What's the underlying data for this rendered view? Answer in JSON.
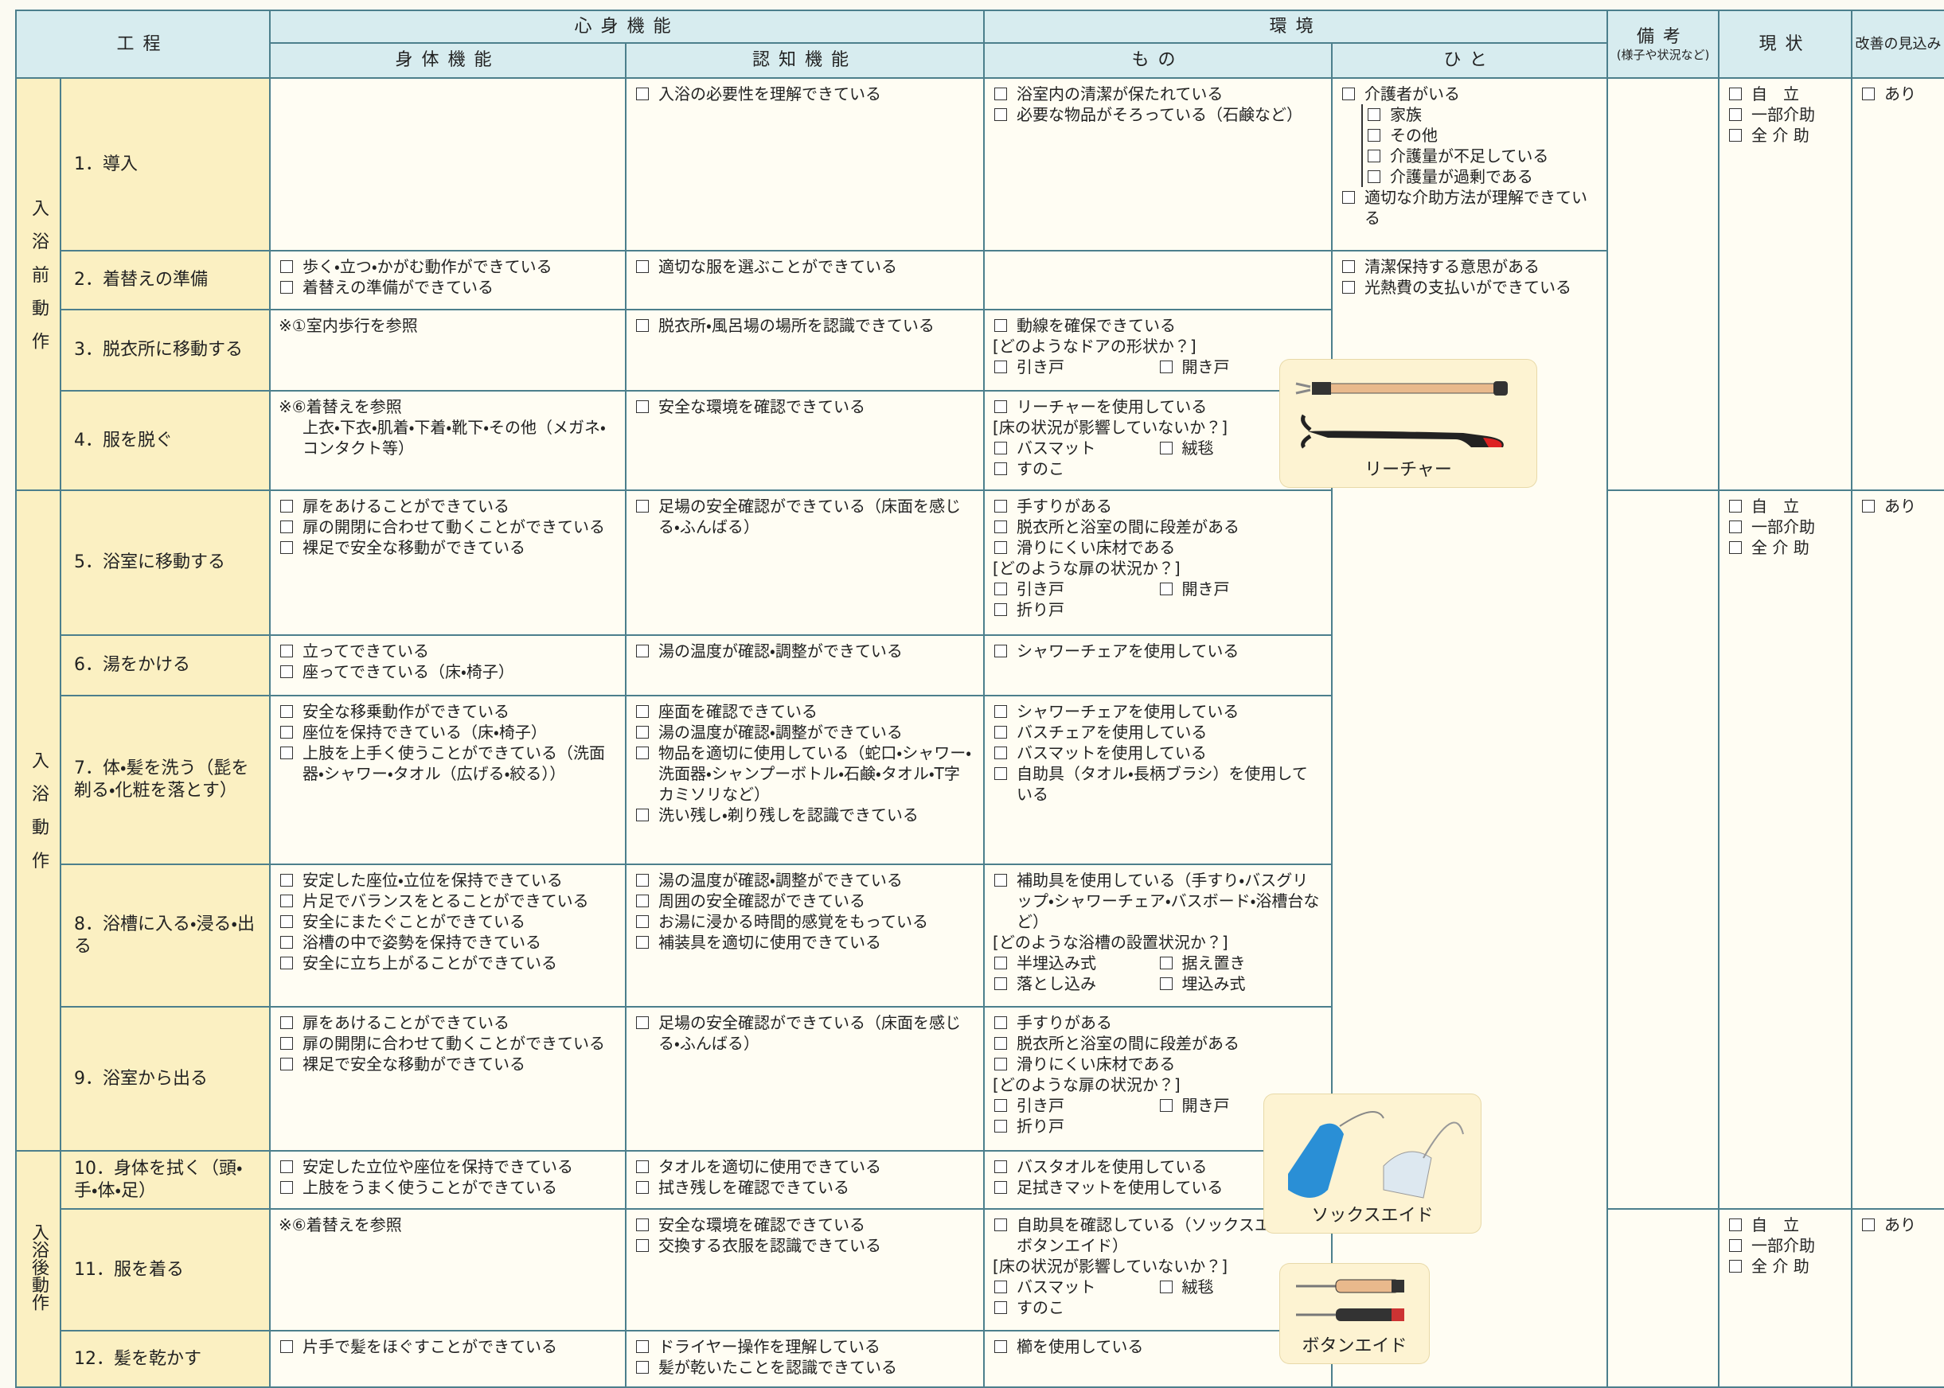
{
  "header": {
    "process": "工程",
    "mind_body": "心身機能",
    "physical": "身体機能",
    "cognitive": "認知機能",
    "environment": "環境",
    "things": "もの",
    "people": "ひと",
    "remarks": "備考",
    "remarks_note": "(様子や状況など)",
    "status": "現状",
    "improvement": "改善の見込み"
  },
  "phases": [
    {
      "label": "入浴前動作",
      "steps": [
        {
          "label": "1．導入",
          "physical": {},
          "cognitive": {
            "checks": [
              "入浴の必要性を理解できている"
            ]
          },
          "things": {
            "checks": [
              "浴室内の清潔が保たれている",
              "必要な物品がそろっている（石鹸など）"
            ]
          }
        },
        {
          "label": "2．着替えの準備",
          "physical": {
            "checks": [
              "歩く・立つ・かがむ動作ができている",
              "着替えの準備ができている"
            ]
          },
          "cognitive": {
            "checks": [
              "適切な服を選ぶことができている"
            ]
          },
          "things": {}
        },
        {
          "label": "3．脱衣所に移動する",
          "physical": {
            "note": "※①室内歩行を参照"
          },
          "cognitive": {
            "checks": [
              "脱衣所・風呂場の場所を認識できている"
            ]
          },
          "things": {
            "checks": [
              "動線を確保できている"
            ],
            "question": "[どのようなドアの形状か？]",
            "options": [
              [
                "引き戸",
                "開き戸"
              ]
            ]
          }
        },
        {
          "label": "4．服を脱ぐ",
          "physical": {
            "note": "※⑥着替えを参照",
            "detail": "上衣・下衣・肌着・下着・靴下・その他（メガネ・コンタクト等）"
          },
          "cognitive": {
            "checks": [
              "安全な環境を確認できている"
            ]
          },
          "things": {
            "checks": [
              "リーチャーを使用している"
            ],
            "question": "[床の状況が影響していないか？]",
            "options": [
              [
                "バスマット",
                "絨毯"
              ],
              [
                "すのこ"
              ]
            ]
          }
        }
      ]
    },
    {
      "label": "入浴動作",
      "steps": [
        {
          "label": "5．浴室に移動する",
          "physical": {
            "checks": [
              "扉をあけることができている",
              "扉の開閉に合わせて動くことができている",
              "裸足で安全な移動ができている"
            ]
          },
          "cognitive": {
            "checks": [
              "足場の安全確認ができている（床面を感じる・ふんばる）"
            ]
          },
          "things": {
            "checks": [
              "手すりがある",
              "脱衣所と浴室の間に段差がある",
              "滑りにくい床材である"
            ],
            "question": "[どのような扉の状況か？]",
            "options": [
              [
                "引き戸",
                "開き戸"
              ],
              [
                "折り戸"
              ]
            ]
          }
        },
        {
          "label": "6．湯をかける",
          "physical": {
            "checks": [
              "立ってできている",
              "座ってできている（床・椅子）"
            ]
          },
          "cognitive": {
            "checks": [
              "湯の温度が確認・調整ができている"
            ]
          },
          "things": {
            "checks": [
              "シャワーチェアを使用している"
            ]
          }
        },
        {
          "label": "7．体・髪を洗う（髭を剃る・化粧を落とす）",
          "physical": {
            "checks": [
              "安全な移乗動作ができている",
              "座位を保持できている（床・椅子）",
              "上肢を上手く使うことができている（洗面器・シャワー・タオル（広げる・絞る））"
            ]
          },
          "cognitive": {
            "checks": [
              "座面を確認できている",
              "湯の温度が確認・調整ができている",
              "物品を適切に使用している（蛇口・シャワー・洗面器・シャンプーボトル・石鹸・タオル・T字カミソリなど）",
              "洗い残し・剃り残しを認識できている"
            ]
          },
          "things": {
            "checks": [
              "シャワーチェアを使用している",
              "バスチェアを使用している",
              "バスマットを使用している",
              "自助具（タオル・長柄ブラシ）を使用している"
            ]
          }
        },
        {
          "label": "8．浴槽に入る・浸る・出る",
          "physical": {
            "checks": [
              "安定した座位・立位を保持できている",
              "片足でバランスをとることができている",
              "安全にまたぐことができている",
              "浴槽の中で姿勢を保持できている",
              "安全に立ち上がることができている"
            ]
          },
          "cognitive": {
            "checks": [
              "湯の温度が確認・調整ができている",
              "周囲の安全確認ができている",
              "お湯に浸かる時間的感覚をもっている",
              "補装具を適切に使用できている"
            ]
          },
          "things": {
            "checks": [
              "補助具を使用している（手すり・バスグリップ・シャワーチェア・バスボード・浴槽台など）"
            ],
            "question": "[どのような浴槽の設置状況か？]",
            "options": [
              [
                "半埋込み式",
                "据え置き"
              ],
              [
                "落とし込み",
                "埋込み式"
              ]
            ]
          }
        },
        {
          "label": "9．浴室から出る",
          "physical": {
            "checks": [
              "扉をあけることができている",
              "扉の開閉に合わせて動くことができている",
              "裸足で安全な移動ができている"
            ]
          },
          "cognitive": {
            "checks": [
              "足場の安全確認ができている（床面を感じる・ふんばる）"
            ]
          },
          "things": {
            "checks": [
              "手すりがある",
              "脱衣所と浴室の間に段差がある",
              "滑りにくい床材である"
            ],
            "question": "[どのような扉の状況か？]",
            "options": [
              [
                "引き戸",
                "開き戸"
              ],
              [
                "折り戸"
              ]
            ]
          }
        }
      ]
    },
    {
      "label": "入浴後動作",
      "steps": [
        {
          "label": "10．身体を拭く（頭・手・体・足）",
          "physical": {
            "checks": [
              "安定した立位や座位を保持できている",
              "上肢をうまく使うことができている"
            ]
          },
          "cognitive": {
            "checks": [
              "タオルを適切に使用できている",
              "拭き残しを確認できている"
            ]
          },
          "things": {
            "checks": [
              "バスタオルを使用している",
              "足拭きマットを使用している"
            ]
          }
        },
        {
          "label": "11．服を着る",
          "physical": {
            "note": "※⑥着替えを参照"
          },
          "cognitive": {
            "checks": [
              "安全な環境を確認できている",
              "交換する衣服を認識できている"
            ]
          },
          "things": {
            "checks": [
              "自助具を確認している（ソックスエイド・ボタンエイド）"
            ],
            "question": "[床の状況が影響していないか？]",
            "options": [
              [
                "バスマット",
                "絨毯"
              ],
              [
                "すのこ"
              ]
            ]
          }
        },
        {
          "label": "12．髪を乾かす",
          "physical": {
            "checks": [
              "片手で髪をほぐすことができている"
            ]
          },
          "cognitive": {
            "checks": [
              "ドライヤー操作を理解している",
              "髪が乾いたことを認識できている"
            ]
          },
          "things": {
            "checks": [
              "櫛を使用している"
            ]
          }
        }
      ]
    }
  ],
  "people": [
    {
      "lead": [
        "介護者がいる"
      ],
      "groups": [
        [
          "家族",
          "その他"
        ],
        [
          "介護量が不足している",
          "介護量が過剰である"
        ]
      ],
      "checks": [
        "適切な介助方法が理解できている"
      ]
    },
    {
      "checks": [
        "清潔保持する意思がある",
        "光熱費の支払いができている"
      ]
    }
  ],
  "status_groups": [
    {
      "options": [
        "自　立",
        "一部介助",
        "全 介 助"
      ],
      "improvement": "あり"
    },
    {
      "options": [
        "自　立",
        "一部介助",
        "全 介 助"
      ],
      "improvement": "あり"
    },
    {
      "options": [
        "自　立",
        "一部介助",
        "全 介 助"
      ],
      "improvement": "あり"
    }
  ],
  "illustrations": [
    {
      "caption": "リーチャー"
    },
    {
      "caption": "ソックスエイド"
    },
    {
      "caption": "ボタンエイド"
    }
  ]
}
